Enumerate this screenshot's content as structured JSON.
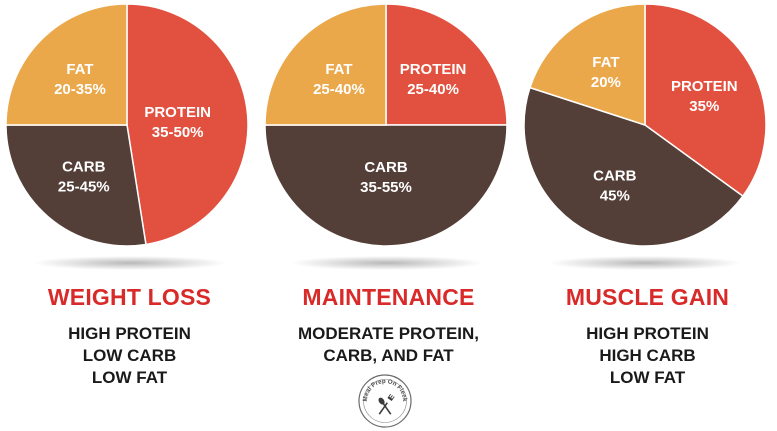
{
  "colors": {
    "protein": "#e2513f",
    "fat": "#eba84b",
    "carb": "#533f37",
    "title": "#d92a2a",
    "label": "#ffffff"
  },
  "chart_data": [
    {
      "type": "pie",
      "title": "WEIGHT LOSS",
      "description": [
        "HIGH PROTEIN",
        "LOW CARB",
        "LOW FAT"
      ],
      "slices": [
        {
          "name": "PROTEIN",
          "label": "35-50%",
          "value": 47.5,
          "color_key": "protein"
        },
        {
          "name": "CARB",
          "label": "25-45%",
          "value": 27.5,
          "color_key": "carb"
        },
        {
          "name": "FAT",
          "label": "20-35%",
          "value": 25,
          "color_key": "fat"
        }
      ]
    },
    {
      "type": "pie",
      "title": "MAINTENANCE",
      "description": [
        "MODERATE PROTEIN,",
        "CARB, AND FAT"
      ],
      "slices": [
        {
          "name": "PROTEIN",
          "label": "25-40%",
          "value": 25,
          "color_key": "protein"
        },
        {
          "name": "CARB",
          "label": "35-55%",
          "value": 50,
          "color_key": "carb"
        },
        {
          "name": "FAT",
          "label": "25-40%",
          "value": 25,
          "color_key": "fat"
        }
      ]
    },
    {
      "type": "pie",
      "title": "MUSCLE GAIN",
      "description": [
        "HIGH PROTEIN",
        "HIGH CARB",
        "LOW FAT"
      ],
      "slices": [
        {
          "name": "PROTEIN",
          "label": "35%",
          "value": 35,
          "color_key": "protein"
        },
        {
          "name": "CARB",
          "label": "45%",
          "value": 45,
          "color_key": "carb"
        },
        {
          "name": "FAT",
          "label": "20%",
          "value": 20,
          "color_key": "fat"
        }
      ]
    }
  ],
  "logo": {
    "text_top": "Meal Prep On Fleek",
    "icon": "fork-and-spoon-icon"
  }
}
